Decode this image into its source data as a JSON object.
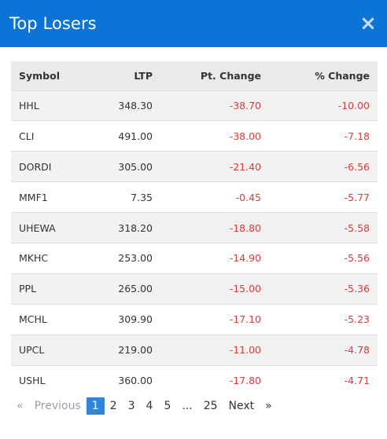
{
  "modal": {
    "title": "Top Losers",
    "close_label": "×"
  },
  "table": {
    "headers": {
      "symbol": "Symbol",
      "ltp": "LTP",
      "pt_change": "Pt. Change",
      "pct_change": "% Change"
    },
    "rows": [
      {
        "symbol": "HHL",
        "ltp": "348.30",
        "pt_change": "-38.70",
        "pct_change": "-10.00"
      },
      {
        "symbol": "CLI",
        "ltp": "491.00",
        "pt_change": "-38.00",
        "pct_change": "-7.18"
      },
      {
        "symbol": "DORDI",
        "ltp": "305.00",
        "pt_change": "-21.40",
        "pct_change": "-6.56"
      },
      {
        "symbol": "MMF1",
        "ltp": "7.35",
        "pt_change": "-0.45",
        "pct_change": "-5.77"
      },
      {
        "symbol": "UHEWA",
        "ltp": "318.20",
        "pt_change": "-18.80",
        "pct_change": "-5.58"
      },
      {
        "symbol": "MKHC",
        "ltp": "253.00",
        "pt_change": "-14.90",
        "pct_change": "-5.56"
      },
      {
        "symbol": "PPL",
        "ltp": "265.00",
        "pt_change": "-15.00",
        "pct_change": "-5.36"
      },
      {
        "symbol": "MCHL",
        "ltp": "309.90",
        "pt_change": "-17.10",
        "pct_change": "-5.23"
      },
      {
        "symbol": "UPCL",
        "ltp": "219.00",
        "pt_change": "-11.00",
        "pct_change": "-4.78"
      },
      {
        "symbol": "USHL",
        "ltp": "360.00",
        "pt_change": "-17.80",
        "pct_change": "-4.71"
      }
    ]
  },
  "pagination": {
    "prev_arrow": "«",
    "prev_label": "Previous",
    "pages": [
      "1",
      "2",
      "3",
      "4",
      "5"
    ],
    "ellipsis": "...",
    "last_page": "25",
    "next_label": "Next",
    "next_arrow": "»",
    "current_page": "1"
  },
  "colors": {
    "header_bg": "#0b74d6",
    "negative": "#e03a3a",
    "active_page": "#2f86d8"
  }
}
